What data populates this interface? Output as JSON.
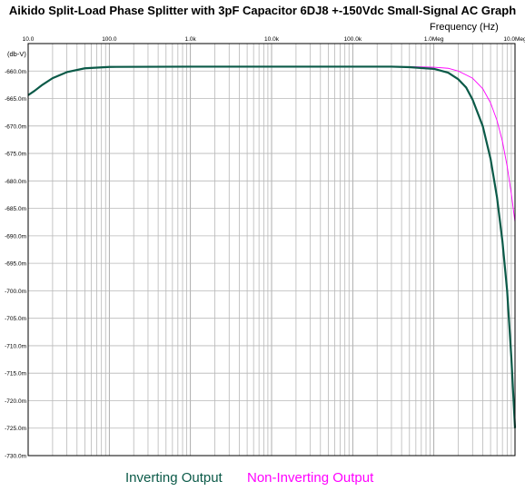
{
  "title": "Aikido Split-Load Phase Splitter with 3pF Capacitor  6DJ8 +-150Vdc Small-Signal AC Graph",
  "chart_data": {
    "type": "line",
    "xscale": "log",
    "xlim": [
      10,
      10000000
    ],
    "ylim": [
      -730,
      -655
    ],
    "xlabel": "Frequency   (Hz)",
    "ylabel": "(db-V)",
    "xticks": [
      {
        "value": 10,
        "label": "10.0"
      },
      {
        "value": 100,
        "label": "100.0"
      },
      {
        "value": 1000,
        "label": "1.0k"
      },
      {
        "value": 10000,
        "label": "10.0k"
      },
      {
        "value": 100000,
        "label": "100.0k"
      },
      {
        "value": 1000000,
        "label": "1.0Meg"
      },
      {
        "value": 10000000,
        "label": "10.0Meg"
      }
    ],
    "yticks": [
      {
        "value": -660,
        "label": "-660.0m"
      },
      {
        "value": -665,
        "label": "-665.0m"
      },
      {
        "value": -670,
        "label": "-670.0m"
      },
      {
        "value": -675,
        "label": "-675.0m"
      },
      {
        "value": -680,
        "label": "-680.0m"
      },
      {
        "value": -685,
        "label": "-685.0m"
      },
      {
        "value": -690,
        "label": "-690.0m"
      },
      {
        "value": -695,
        "label": "-695.0m"
      },
      {
        "value": -700,
        "label": "-700.0m"
      },
      {
        "value": -705,
        "label": "-705.0m"
      },
      {
        "value": -710,
        "label": "-710.0m"
      },
      {
        "value": -715,
        "label": "-715.0m"
      },
      {
        "value": -720,
        "label": "-720.0m"
      },
      {
        "value": -725,
        "label": "-725.0m"
      },
      {
        "value": -730,
        "label": "-730.0m"
      }
    ],
    "grid": true,
    "series": [
      {
        "name": "Inverting Output",
        "color": "#0b5a48",
        "points": [
          [
            10,
            -664.4
          ],
          [
            12,
            -663.6
          ],
          [
            15,
            -662.5
          ],
          [
            20,
            -661.3
          ],
          [
            30,
            -660.2
          ],
          [
            50,
            -659.5
          ],
          [
            100,
            -659.25
          ],
          [
            1000,
            -659.2
          ],
          [
            10000,
            -659.2
          ],
          [
            100000,
            -659.2
          ],
          [
            300000,
            -659.2
          ],
          [
            500000,
            -659.3
          ],
          [
            1000000,
            -659.6
          ],
          [
            1500000,
            -660.3
          ],
          [
            2000000,
            -661.5
          ],
          [
            2500000,
            -663.0
          ],
          [
            3000000,
            -665.2
          ],
          [
            4000000,
            -670.0
          ],
          [
            5000000,
            -676.0
          ],
          [
            6000000,
            -683.0
          ],
          [
            7000000,
            -691.0
          ],
          [
            8000000,
            -700.0
          ],
          [
            9000000,
            -712.0
          ],
          [
            10000000,
            -725.0
          ]
        ]
      },
      {
        "name": "Non-Inverting Output",
        "color": "#ff00ff",
        "points": [
          [
            10,
            -664.4
          ],
          [
            12,
            -663.6
          ],
          [
            15,
            -662.5
          ],
          [
            20,
            -661.3
          ],
          [
            30,
            -660.2
          ],
          [
            50,
            -659.5
          ],
          [
            100,
            -659.25
          ],
          [
            1000,
            -659.2
          ],
          [
            10000,
            -659.2
          ],
          [
            100000,
            -659.2
          ],
          [
            500000,
            -659.2
          ],
          [
            1000000,
            -659.3
          ],
          [
            1500000,
            -659.5
          ],
          [
            2000000,
            -660.0
          ],
          [
            3000000,
            -661.3
          ],
          [
            4000000,
            -663.2
          ],
          [
            5000000,
            -665.8
          ],
          [
            6000000,
            -669.0
          ],
          [
            7000000,
            -672.8
          ],
          [
            8000000,
            -677.3
          ],
          [
            9000000,
            -682.3
          ],
          [
            10000000,
            -687.5
          ]
        ]
      }
    ]
  }
}
